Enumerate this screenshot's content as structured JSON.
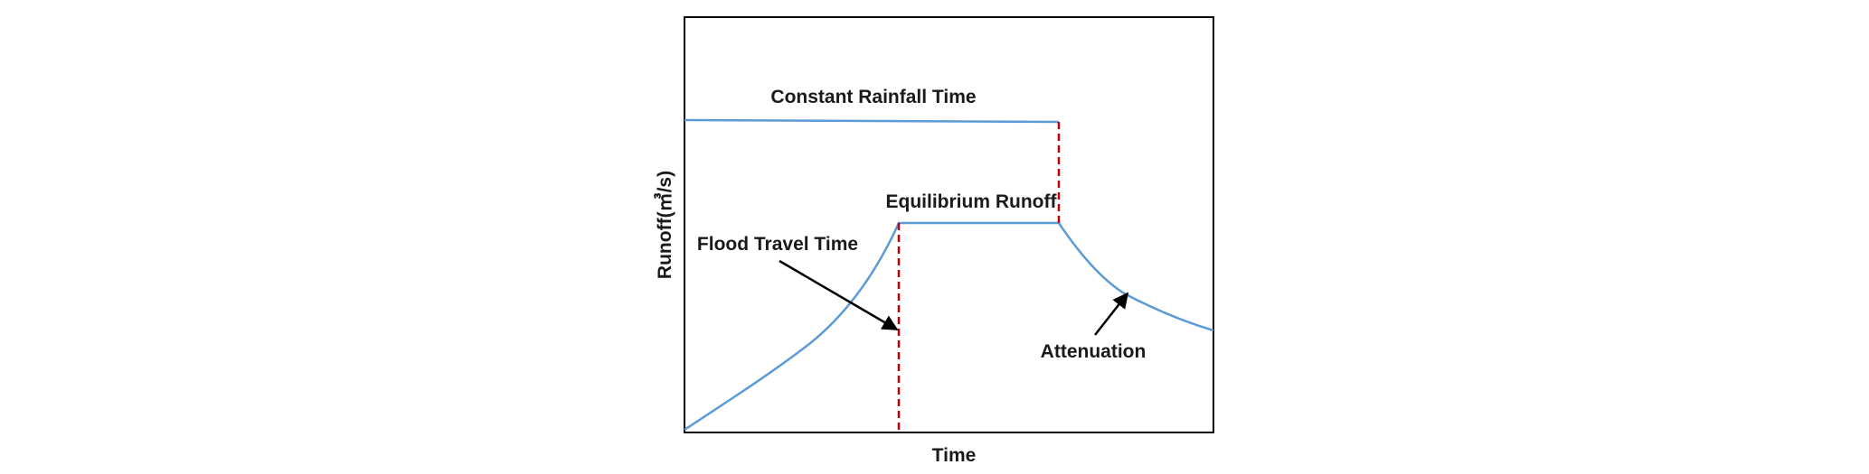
{
  "chart_data": {
    "type": "line",
    "xlabel": "Time",
    "ylabel": "Runoff(㎥/s)",
    "grid": false,
    "legend": "none",
    "colors": {
      "curve": "#5b9bd5",
      "marker_line": "#c00000",
      "arrow": "#000000",
      "frame": "#000000"
    },
    "annotations": {
      "constant_rainfall_time": "Constant Rainfall Time",
      "equilibrium_runoff": "Equilibrium Runoff",
      "flood_travel_time": "Flood Travel Time",
      "attenuation": "Attenuation"
    }
  }
}
